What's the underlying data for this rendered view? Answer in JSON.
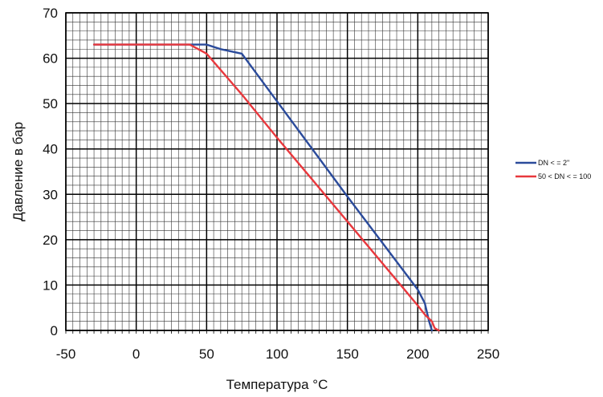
{
  "chart_data": {
    "type": "line",
    "xlabel": "Температура  °C",
    "ylabel": "Давление в бар",
    "xlim": [
      -50,
      250
    ],
    "ylim": [
      0,
      70
    ],
    "x_ticks": [
      -50,
      0,
      50,
      100,
      150,
      200,
      250
    ],
    "y_ticks": [
      0,
      10,
      20,
      30,
      40,
      50,
      60,
      70
    ],
    "grid": true,
    "legend_position": "right",
    "series": [
      {
        "name": "DN < = 2\"",
        "color": "#2b4b9b",
        "points": [
          [
            -30,
            63
          ],
          [
            40,
            63
          ],
          [
            50,
            63
          ],
          [
            60,
            62
          ],
          [
            75,
            61
          ],
          [
            100,
            50.5
          ],
          [
            150,
            29.5
          ],
          [
            200,
            9
          ],
          [
            205,
            6
          ],
          [
            208,
            2
          ],
          [
            210,
            0
          ]
        ]
      },
      {
        "name": "50 < DN < = 100",
        "color": "#e8383d",
        "points": [
          [
            -30,
            63
          ],
          [
            38,
            63
          ],
          [
            50,
            61
          ],
          [
            75,
            52
          ],
          [
            100,
            42.5
          ],
          [
            150,
            24
          ],
          [
            200,
            5.5
          ],
          [
            205,
            3.5
          ],
          [
            210,
            2
          ],
          [
            212,
            0.5
          ],
          [
            215,
            0
          ]
        ]
      }
    ]
  }
}
